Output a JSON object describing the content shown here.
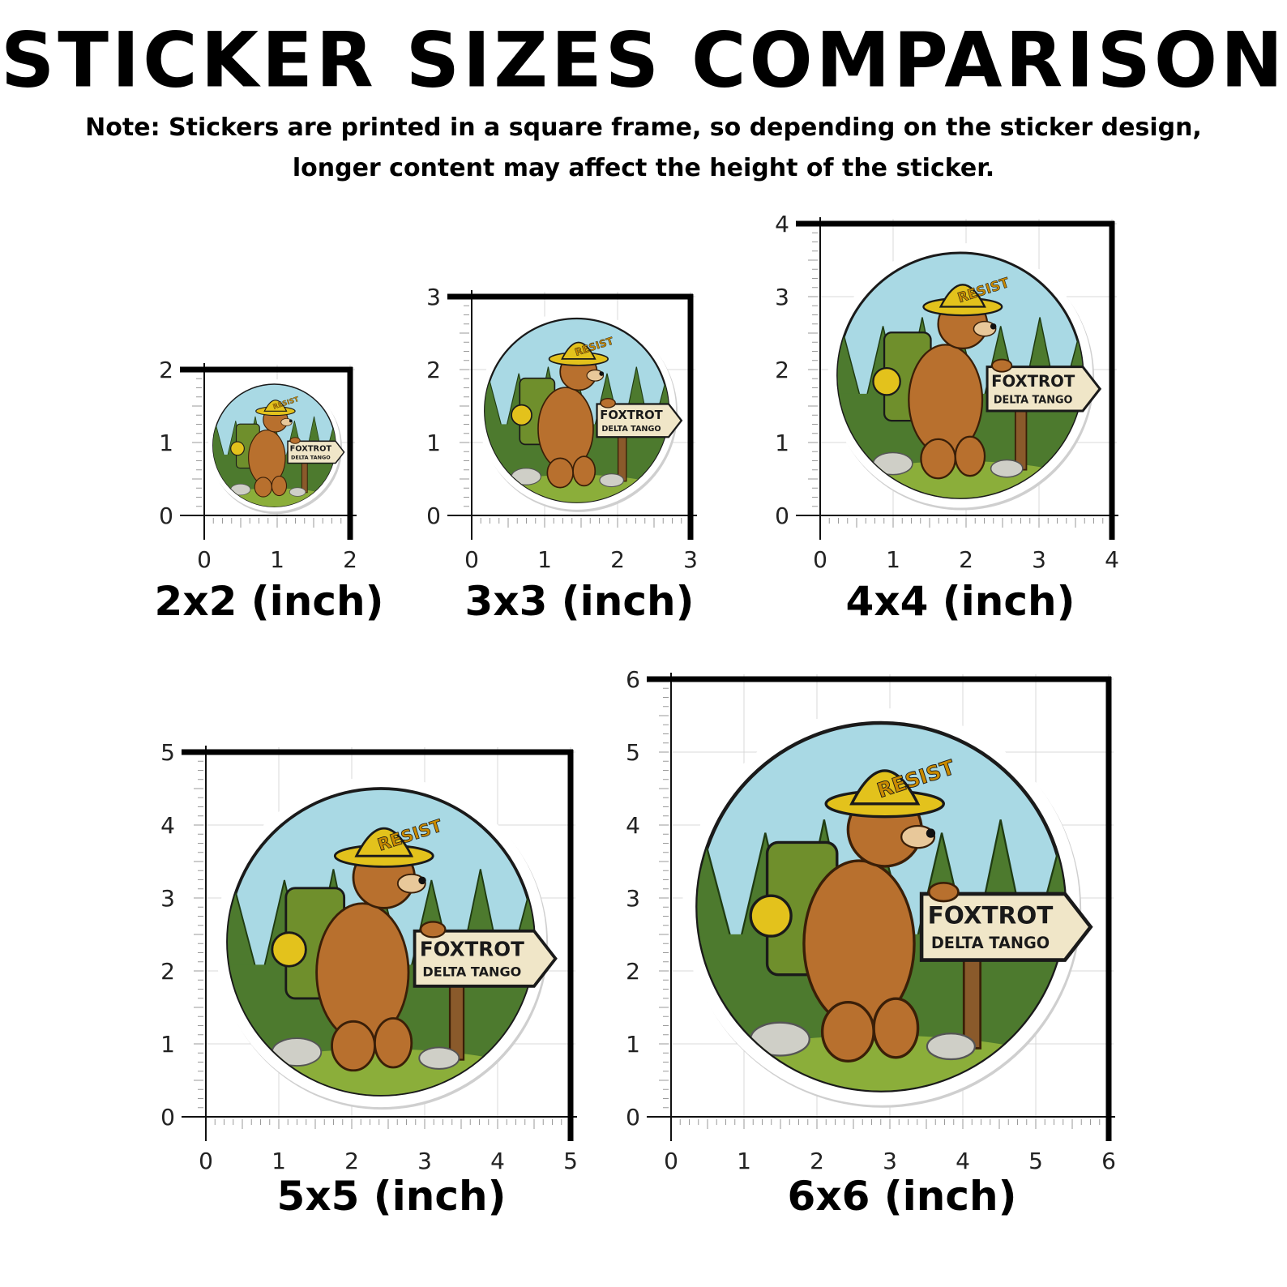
{
  "title": "STICKER SIZES COMPARISON",
  "note": {
    "line1": "Note: Stickers are printed in a square frame, so depending on the sticker design,",
    "line2": "longer content may affect the height of the sticker."
  },
  "sticker_text": {
    "hat": "RESIST",
    "sign_line1": "FOXTROT",
    "sign_line2": "DELTA TANGO"
  },
  "sizes": [
    {
      "inches": 2,
      "label": "2x2 (inch)"
    },
    {
      "inches": 3,
      "label": "3x3 (inch)"
    },
    {
      "inches": 4,
      "label": "4x4 (inch)"
    },
    {
      "inches": 5,
      "label": "5x5 (inch)"
    },
    {
      "inches": 6,
      "label": "6x6 (inch)"
    }
  ],
  "colors": {
    "frame": "#000000",
    "ruler_tick": "#9a9a9a",
    "grid": "#d8d8d8",
    "sky": "#a9d9e4",
    "forest": "#4d7a2e",
    "ground": "#8bae3a",
    "bear": "#b8702e",
    "backpack": "#6f8f2c",
    "hat": "#e3c21c",
    "sign": "#f0e6c8"
  }
}
